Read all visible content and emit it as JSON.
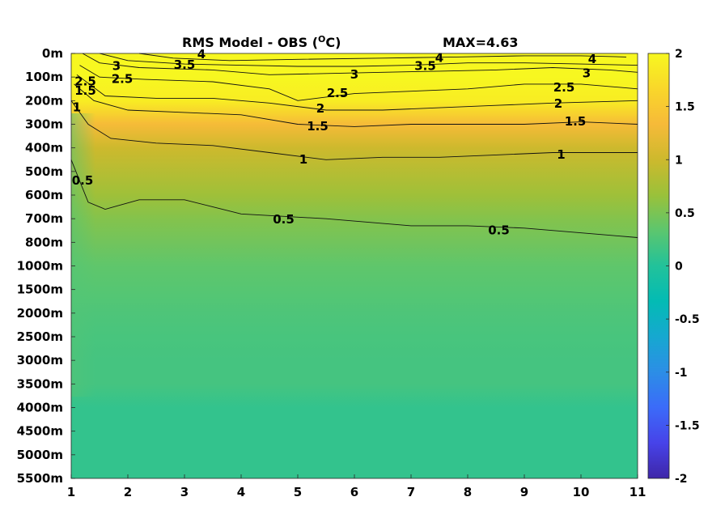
{
  "chart_data": {
    "type": "heatmap",
    "title": "RMS Model - OBS (",
    "title_superscript": "O",
    "title_end": "C)",
    "max_label": "MAX=4.63",
    "x_ticks": [
      "1",
      "2",
      "3",
      "4",
      "5",
      "6",
      "7",
      "8",
      "9",
      "10",
      "11"
    ],
    "y_ticks": [
      "0m",
      "100m",
      "200m",
      "300m",
      "400m",
      "500m",
      "600m",
      "700m",
      "800m",
      "1000m",
      "1500m",
      "2000m",
      "2500m",
      "3000m",
      "3500m",
      "4000m",
      "4500m",
      "5000m",
      "5500m"
    ],
    "colorbar_ticks": [
      "2",
      "1.5",
      "1",
      "0.5",
      "0",
      "-0.5",
      "-1",
      "-1.5",
      "-2"
    ],
    "colorbar_range": [
      -2,
      2
    ],
    "colormap": [
      "#3e26a8",
      "#4743e9",
      "#3b6bf9",
      "#2c8ee6",
      "#16a8d0",
      "#03bbb4",
      "#22c29a",
      "#5cc66e",
      "#9ac13a",
      "#cdb92d",
      "#f6ba39",
      "#f9d72a",
      "#f7f720"
    ],
    "depth_profile": [
      {
        "depth": "0m",
        "value": 2.5
      },
      {
        "depth": "100m",
        "value": 2.2
      },
      {
        "depth": "200m",
        "value": 1.9
      },
      {
        "depth": "300m",
        "value": 1.35
      },
      {
        "depth": "400m",
        "value": 1.0
      },
      {
        "depth": "500m",
        "value": 0.85
      },
      {
        "depth": "600m",
        "value": 0.7
      },
      {
        "depth": "700m",
        "value": 0.55
      },
      {
        "depth": "800m",
        "value": 0.45
      },
      {
        "depth": "1000m",
        "value": 0.35
      },
      {
        "depth": "1500m",
        "value": 0.3
      },
      {
        "depth": "2000m",
        "value": 0.25
      },
      {
        "depth": "2500m",
        "value": 0.22
      },
      {
        "depth": "3000m",
        "value": 0.2
      },
      {
        "depth": "3500m",
        "value": 0.2
      },
      {
        "depth": "4000m",
        "value": 0.1
      },
      {
        "depth": "4500m",
        "value": 0.1
      },
      {
        "depth": "5000m",
        "value": 0.1
      },
      {
        "depth": "5500m",
        "value": 0.1
      }
    ],
    "contour_labels": [
      {
        "text": "4",
        "x": 3.3,
        "y": 0.05
      },
      {
        "text": "3.5",
        "x": 3.0,
        "y": 0.5
      },
      {
        "text": "3",
        "x": 1.8,
        "y": 0.55
      },
      {
        "text": "2.5",
        "x": 1.9,
        "y": 1.1
      },
      {
        "text": "2.5",
        "x": 1.25,
        "y": 1.2
      },
      {
        "text": "1.5",
        "x": 1.25,
        "y": 1.6
      },
      {
        "text": "1",
        "x": 1.1,
        "y": 2.3
      },
      {
        "text": "4",
        "x": 7.5,
        "y": 0.2
      },
      {
        "text": "3.5",
        "x": 7.25,
        "y": 0.55
      },
      {
        "text": "3",
        "x": 6.0,
        "y": 0.9
      },
      {
        "text": "4",
        "x": 10.2,
        "y": 0.25
      },
      {
        "text": "3",
        "x": 10.1,
        "y": 0.85
      },
      {
        "text": "2.5",
        "x": 5.7,
        "y": 1.7
      },
      {
        "text": "2.5",
        "x": 9.7,
        "y": 1.45
      },
      {
        "text": "2",
        "x": 5.4,
        "y": 2.35
      },
      {
        "text": "2",
        "x": 9.6,
        "y": 2.15
      },
      {
        "text": "1.5",
        "x": 5.35,
        "y": 3.1
      },
      {
        "text": "1.5",
        "x": 9.9,
        "y": 2.9
      },
      {
        "text": "1",
        "x": 5.1,
        "y": 4.5
      },
      {
        "text": "1",
        "x": 9.65,
        "y": 4.3
      },
      {
        "text": "0.5",
        "x": 1.2,
        "y": 5.4
      },
      {
        "text": "0.5",
        "x": 4.75,
        "y": 7.05
      },
      {
        "text": "0.5",
        "x": 8.55,
        "y": 7.5
      }
    ],
    "contour_lines": [
      {
        "level": "0.5",
        "points": [
          [
            1.0,
            4.5
          ],
          [
            1.3,
            6.3
          ],
          [
            1.6,
            6.6
          ],
          [
            2.2,
            6.2
          ],
          [
            3.0,
            6.2
          ],
          [
            4.0,
            6.8
          ],
          [
            5.5,
            7.0
          ],
          [
            7.0,
            7.3
          ],
          [
            8.0,
            7.3
          ],
          [
            9.0,
            7.4
          ],
          [
            10.5,
            7.7
          ],
          [
            11.0,
            7.8
          ]
        ]
      },
      {
        "level": "1",
        "points": [
          [
            1.0,
            2.0
          ],
          [
            1.3,
            3.0
          ],
          [
            1.7,
            3.6
          ],
          [
            2.5,
            3.8
          ],
          [
            3.5,
            3.9
          ],
          [
            4.5,
            4.2
          ],
          [
            5.5,
            4.5
          ],
          [
            6.5,
            4.4
          ],
          [
            7.5,
            4.4
          ],
          [
            8.5,
            4.3
          ],
          [
            9.5,
            4.2
          ],
          [
            11.0,
            4.2
          ]
        ]
      },
      {
        "level": "1.5",
        "points": [
          [
            1.05,
            1.3
          ],
          [
            1.4,
            2.0
          ],
          [
            2.0,
            2.4
          ],
          [
            3.0,
            2.5
          ],
          [
            4.0,
            2.6
          ],
          [
            5.0,
            3.0
          ],
          [
            6.0,
            3.1
          ],
          [
            7.0,
            3.0
          ],
          [
            8.0,
            3.0
          ],
          [
            9.0,
            3.0
          ],
          [
            10.0,
            2.9
          ],
          [
            11.0,
            3.0
          ]
        ]
      },
      {
        "level": "2",
        "points": [
          [
            1.1,
            0.9
          ],
          [
            1.6,
            1.8
          ],
          [
            2.5,
            1.9
          ],
          [
            3.5,
            1.9
          ],
          [
            4.5,
            2.1
          ],
          [
            5.5,
            2.4
          ],
          [
            6.5,
            2.4
          ],
          [
            7.5,
            2.3
          ],
          [
            8.5,
            2.2
          ],
          [
            9.5,
            2.1
          ],
          [
            11.0,
            2.0
          ]
        ]
      },
      {
        "level": "2.5",
        "points": [
          [
            1.15,
            0.5
          ],
          [
            1.5,
            1.0
          ],
          [
            2.3,
            1.1
          ],
          [
            3.5,
            1.2
          ],
          [
            4.5,
            1.5
          ],
          [
            5.0,
            2.0
          ],
          [
            6.0,
            1.7
          ],
          [
            7.0,
            1.6
          ],
          [
            8.0,
            1.5
          ],
          [
            9.0,
            1.3
          ],
          [
            10.0,
            1.3
          ],
          [
            11.0,
            1.5
          ]
        ]
      },
      {
        "level": "3",
        "points": [
          [
            1.2,
            0.0
          ],
          [
            1.5,
            0.4
          ],
          [
            2.2,
            0.6
          ],
          [
            3.5,
            0.7
          ],
          [
            4.5,
            0.9
          ],
          [
            5.5,
            0.85
          ],
          [
            6.5,
            0.8
          ],
          [
            7.5,
            0.75
          ],
          [
            8.5,
            0.7
          ],
          [
            9.5,
            0.6
          ],
          [
            10.5,
            0.7
          ],
          [
            11.0,
            0.8
          ]
        ]
      },
      {
        "level": "3.5",
        "points": [
          [
            1.5,
            0.0
          ],
          [
            2.0,
            0.3
          ],
          [
            3.0,
            0.45
          ],
          [
            4.0,
            0.5
          ],
          [
            5.0,
            0.55
          ],
          [
            6.0,
            0.55
          ],
          [
            7.0,
            0.5
          ],
          [
            8.0,
            0.4
          ],
          [
            9.0,
            0.4
          ],
          [
            10.0,
            0.45
          ],
          [
            11.0,
            0.5
          ]
        ]
      },
      {
        "level": "4",
        "points": [
          [
            2.2,
            0.0
          ],
          [
            2.8,
            0.2
          ],
          [
            3.8,
            0.3
          ],
          [
            5.0,
            0.25
          ],
          [
            6.5,
            0.2
          ],
          [
            7.8,
            0.15
          ],
          [
            9.0,
            0.1
          ],
          [
            10.0,
            0.1
          ],
          [
            10.8,
            0.15
          ]
        ]
      }
    ]
  }
}
